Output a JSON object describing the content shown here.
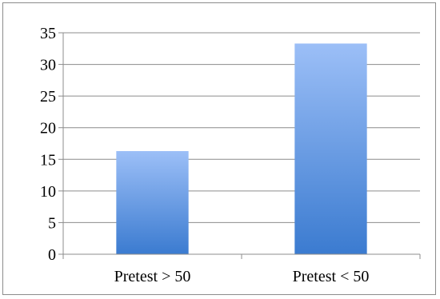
{
  "chart_data": {
    "type": "bar",
    "title": "",
    "xlabel": "",
    "ylabel": "",
    "categories": [
      "Pretest > 50",
      "Pretest < 50"
    ],
    "values": [
      16.3,
      33.3
    ],
    "ylim": [
      0,
      35
    ],
    "yticks": [
      0,
      5,
      10,
      15,
      20,
      25,
      30,
      35
    ],
    "grid": true,
    "legend": "none",
    "colors": {
      "bar_top": "#9cbff7",
      "bar_bottom": "#3b7bd0",
      "grid": "#8c8c8c",
      "axis": "#8c8c8c"
    }
  }
}
